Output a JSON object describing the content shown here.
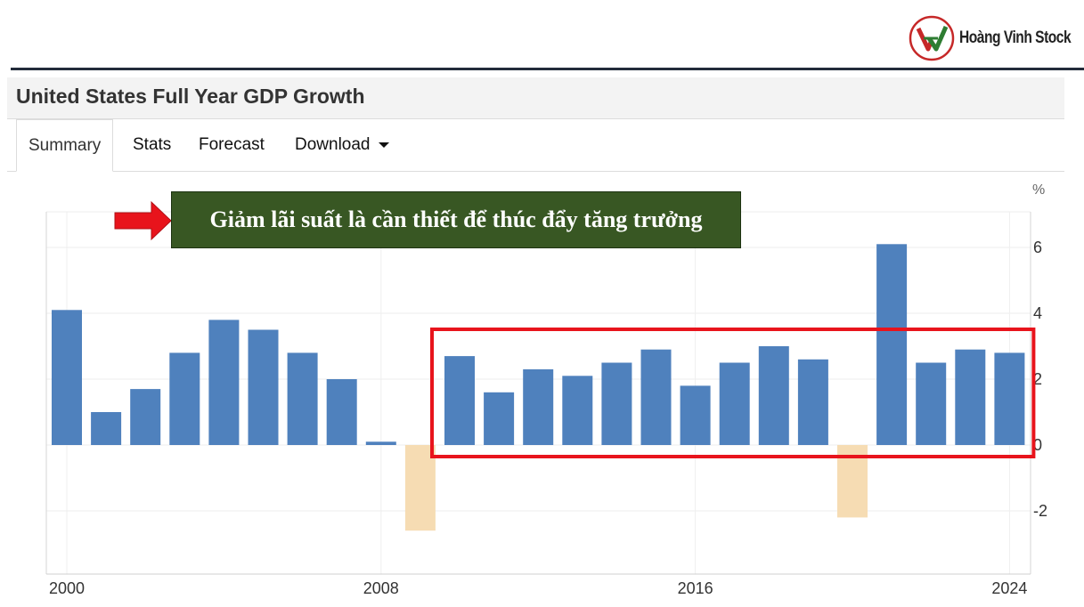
{
  "logo": {
    "text": "Hoàng Vinh Stock",
    "colors": {
      "ring": "#c62828",
      "green": "#2e7d32",
      "red": "#c62828"
    }
  },
  "page": {
    "title": "United States Full Year GDP Growth",
    "tabs": [
      {
        "label": "Summary",
        "active": true
      },
      {
        "label": "Stats",
        "active": false
      },
      {
        "label": "Forecast",
        "active": false
      },
      {
        "label": "Download",
        "active": false
      }
    ]
  },
  "annotation": {
    "text": "Giảm lãi suất là cần thiết để thúc đẩy tăng trưởng",
    "arrow_color": "#e8141c",
    "box_color": "#385723",
    "highlight_box_color": "#e8141c",
    "highlight_range": [
      "2010",
      "2024"
    ]
  },
  "chart_data": {
    "type": "bar",
    "title": "United States Full Year GDP Growth",
    "unit_label": "%",
    "categories": [
      "2000",
      "2001",
      "2002",
      "2003",
      "2004",
      "2005",
      "2006",
      "2007",
      "2008",
      "2009",
      "2010",
      "2011",
      "2012",
      "2013",
      "2014",
      "2015",
      "2016",
      "2017",
      "2018",
      "2019",
      "2020",
      "2021",
      "2022",
      "2023",
      "2024"
    ],
    "values": [
      4.1,
      1.0,
      1.7,
      2.8,
      3.8,
      3.5,
      2.8,
      2.0,
      0.1,
      -2.6,
      2.7,
      1.6,
      2.3,
      2.1,
      2.5,
      2.9,
      1.8,
      2.5,
      3.0,
      2.6,
      -2.2,
      6.1,
      2.5,
      2.9,
      2.8
    ],
    "ylim": [
      -4,
      7
    ],
    "yticks": [
      -2,
      0,
      2,
      4,
      6
    ],
    "x_tick_labels": [
      "2000",
      "2008",
      "2016",
      "2024"
    ],
    "colors": {
      "positive": "#4f81bd",
      "negative": "#f6dcb3"
    },
    "grid": true,
    "y_axis_position": "right"
  }
}
